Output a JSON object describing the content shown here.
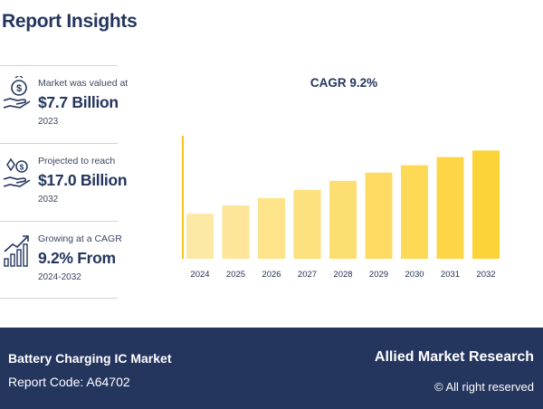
{
  "header": {
    "title": "Report Insights"
  },
  "stats": [
    {
      "icon": "money-hand-icon",
      "label": "Market was valued at",
      "value": "$7.7 Billion",
      "sub": "2023"
    },
    {
      "icon": "coins-hand-icon",
      "label": "Projected to reach",
      "value": "$17.0 Billion",
      "sub": "2032"
    },
    {
      "icon": "growth-bars-icon",
      "label": "Growing at a CAGR",
      "value": "9.2% From",
      "sub": "2024-2032"
    }
  ],
  "colors": {
    "brand": "#24355e",
    "bar_light": "#fde9a6",
    "bar_dark": "#fdd33a",
    "axis": "#f5c518"
  },
  "chart_data": {
    "type": "bar",
    "title": "CAGR 9.2%",
    "categories": [
      "2024",
      "2025",
      "2026",
      "2027",
      "2028",
      "2029",
      "2030",
      "2031",
      "2032"
    ],
    "values": [
      5.5,
      6.5,
      7.4,
      8.4,
      9.5,
      10.5,
      11.4,
      12.4,
      13.2
    ],
    "ylim": [
      0,
      15
    ],
    "grid": false,
    "legend": "none"
  },
  "footer": {
    "market": "Battery Charging IC Market",
    "report_code": "Report Code: A64702",
    "brand": "Allied Market Research",
    "rights": "© All right reserved"
  }
}
